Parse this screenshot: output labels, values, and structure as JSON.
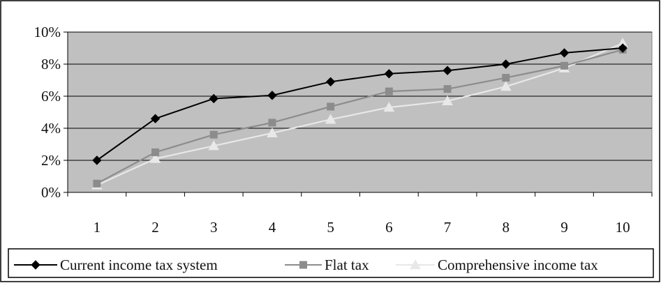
{
  "chart_data": {
    "type": "line",
    "categories": [
      "1",
      "2",
      "3",
      "4",
      "5",
      "6",
      "7",
      "8",
      "9",
      "10"
    ],
    "series": [
      {
        "name": "Current income tax system",
        "marker": "diamond",
        "color": "#000000",
        "values": [
          2.0,
          4.6,
          5.85,
          6.05,
          6.9,
          7.4,
          7.6,
          8.0,
          8.7,
          9.0
        ]
      },
      {
        "name": "Flat tax",
        "marker": "square",
        "color": "#8c8c8c",
        "values": [
          0.55,
          2.5,
          3.6,
          4.35,
          5.35,
          6.3,
          6.45,
          7.15,
          7.9,
          8.9
        ]
      },
      {
        "name": "Comprehensive income tax",
        "marker": "triangle",
        "color": "#e8e8e8",
        "values": [
          0.45,
          2.1,
          2.9,
          3.7,
          4.55,
          5.3,
          5.7,
          6.6,
          7.75,
          9.3
        ]
      }
    ],
    "y_ticks": [
      "0%",
      "2%",
      "4%",
      "6%",
      "8%",
      "10%"
    ],
    "y_tick_values": [
      0,
      2,
      4,
      6,
      8,
      10
    ],
    "ylim": [
      0,
      10
    ],
    "grid": true,
    "legend_position": "bottom",
    "plot_background": "#c0c0c0"
  }
}
